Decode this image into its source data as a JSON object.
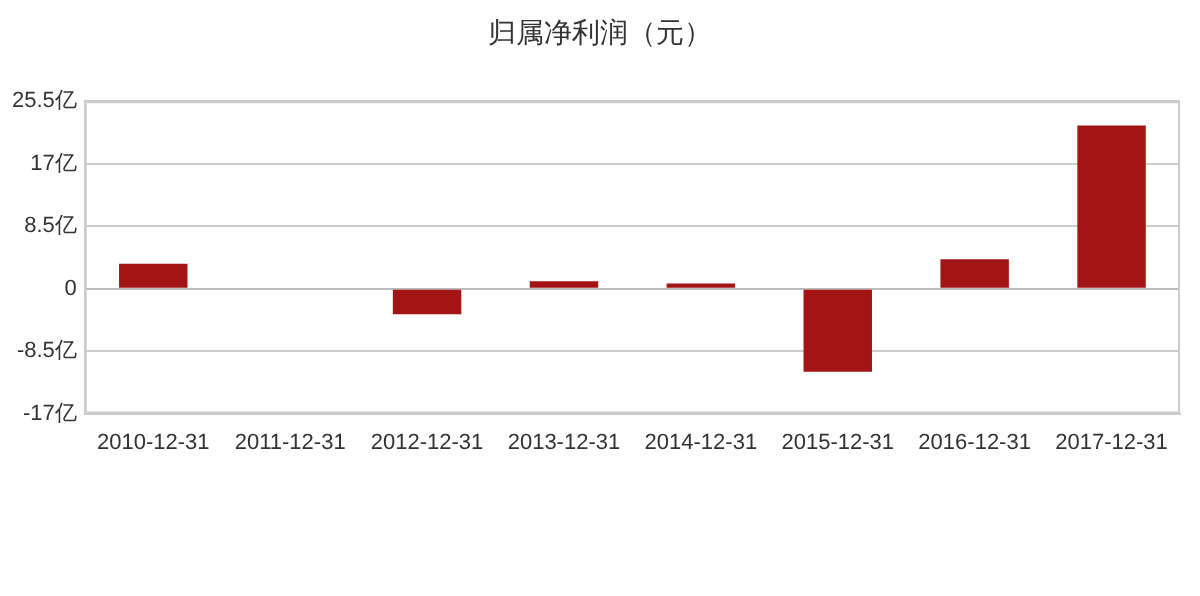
{
  "chart_data": {
    "type": "bar",
    "title": "归属净利润（元）",
    "categories": [
      "2010-12-31",
      "2011-12-31",
      "2012-12-31",
      "2013-12-31",
      "2014-12-31",
      "2015-12-31",
      "2016-12-31",
      "2017-12-31"
    ],
    "values": [
      3.4,
      0,
      -3.5,
      1.0,
      0.7,
      -11.3,
      4.0,
      22.2
    ],
    "color": "#a31515",
    "ylim": [
      -17,
      25.5
    ],
    "yticks": [
      {
        "value": -17,
        "label": "-17亿"
      },
      {
        "value": -8.5,
        "label": "-8.5亿"
      },
      0,
      {
        "value": 8.5,
        "label": "8.5亿"
      },
      {
        "value": 17,
        "label": "17亿"
      },
      {
        "value": 25.5,
        "label": "25.5亿"
      }
    ],
    "grid": "y",
    "legend": false
  }
}
